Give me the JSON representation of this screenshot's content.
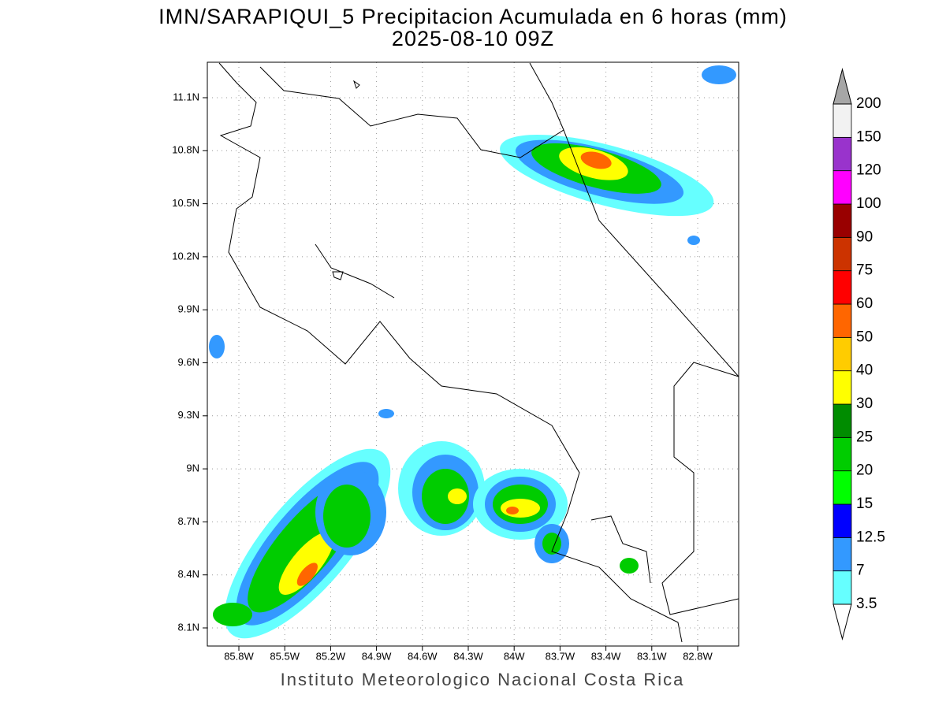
{
  "header": {
    "title": "IMN/SARAPIQUI_5 Precipitacion Acumulada en 6 horas (mm)",
    "subtitle": "2025-08-10 09Z"
  },
  "map": {
    "lon_labels": [
      "85.8W",
      "85.5W",
      "85.2W",
      "84.9W",
      "84.6W",
      "84.3W",
      "84W",
      "83.7W",
      "83.4W",
      "83.1W",
      "82.8W"
    ],
    "lat_labels": [
      "11.1N",
      "10.8N",
      "10.5N",
      "10.2N",
      "9.9N",
      "9.6N",
      "9.3N",
      "9N",
      "8.7N",
      "8.4N",
      "8.1N"
    ]
  },
  "colorbar": {
    "levels": [
      3.5,
      7,
      12.5,
      15,
      20,
      25,
      30,
      40,
      50,
      60,
      75,
      90,
      100,
      120,
      150,
      200
    ],
    "colors": [
      "#66ffff",
      "#3399ff",
      "#0000ff",
      "#00ff00",
      "#00cc00",
      "#008c00",
      "#ffff00",
      "#ffcc00",
      "#ff6600",
      "#ff0000",
      "#cc3300",
      "#990000",
      "#ff00ff",
      "#9933cc",
      "#f2f2f2"
    ],
    "over_color": "#a6a6a6",
    "under_color": "#ffffff"
  },
  "footer": "Instituto Meteorologico Nacional Costa Rica"
}
